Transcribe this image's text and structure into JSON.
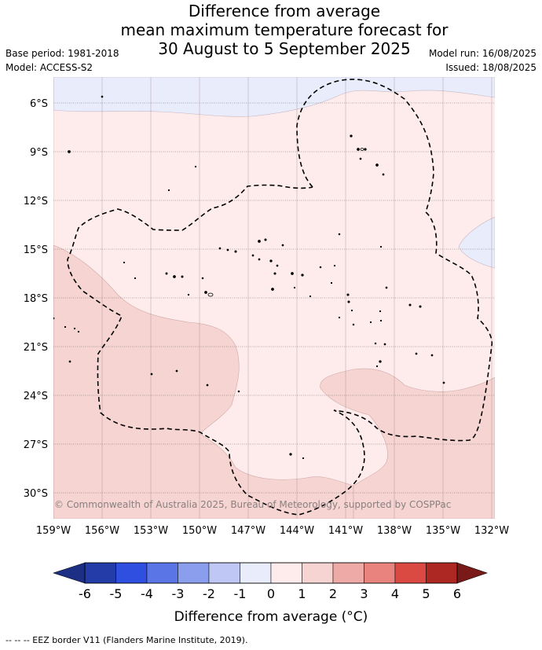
{
  "title_lines": [
    "Difference from average",
    "mean maximum temperature forecast for",
    "30 August to 5 September 2025"
  ],
  "base_period": "Base period: 1981-2018",
  "model": "Model: ACCESS-S2",
  "model_run": "Model run: 16/08/2025",
  "issued": "Issued: 18/08/2025",
  "copyright": "© Commonwealth of Australia 2025, Bureau of Meteorology, supported by COSPPac",
  "lat_labels": [
    "6°S",
    "9°S",
    "12°S",
    "15°S",
    "18°S",
    "21°S",
    "24°S",
    "27°S",
    "30°S"
  ],
  "lon_labels": [
    "159°W",
    "156°W",
    "153°W",
    "150°W",
    "147°W",
    "144°W",
    "141°W",
    "138°W",
    "135°W",
    "132°W"
  ],
  "colorbar": {
    "ticks": [
      "-6",
      "-5",
      "-4",
      "-3",
      "-2",
      "-1",
      "0",
      "1",
      "2",
      "3",
      "4",
      "5",
      "6"
    ],
    "colors": [
      "#233ca8",
      "#2f4fe0",
      "#5a76e6",
      "#8b9eee",
      "#bfc8f4",
      "#e9ecfb",
      "#fdeceb",
      "#f5d4d2",
      "#eeaaa6",
      "#e8837d",
      "#db4a42",
      "#ae2823"
    ],
    "low_arrow": "#1c2f85",
    "high_arrow": "#7a1a18",
    "label": "Difference from average (°C)"
  },
  "footer_note": "-- -- -- EEZ border V11 (Flanders Marine Institute, 2019)."
}
